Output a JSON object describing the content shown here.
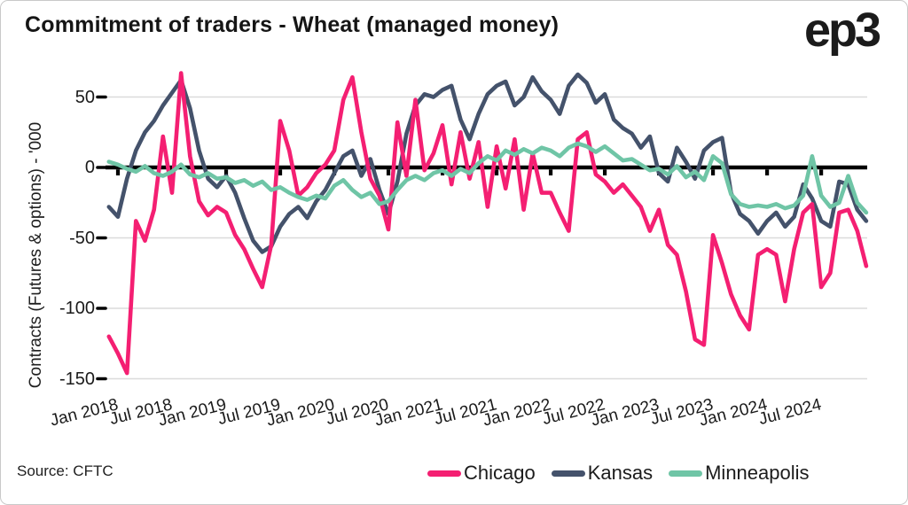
{
  "header": {
    "title": "Commitment of traders - Wheat (managed money)",
    "logo": "ep3"
  },
  "footer": {
    "source": "Source: CFTC"
  },
  "chart_data": {
    "type": "line",
    "title": "Commitment of traders - Wheat (managed money)",
    "xlabel": "",
    "ylabel": "Contracts (Futures & options) - '000",
    "ylim": [
      -160,
      72
    ],
    "y_ticks": [
      50,
      0,
      -50,
      -100,
      -150
    ],
    "x_tick_labels": [
      "Jan 2018",
      "Jul 2018",
      "Jan 2019",
      "Jul 2019",
      "Jan 2020",
      "Jul 2020",
      "Jan 2021",
      "Jul 2021",
      "Jan 2022",
      "Jul 2022",
      "Jan 2023",
      "Jul 2023",
      "Jan 2024",
      "Jul 2024"
    ],
    "grid": "horizontal-gray-lines, thick black zero axis with date ticks",
    "legend_position": "bottom",
    "unit": "thousand contracts",
    "months": [
      "2017-12",
      "2018-01",
      "2018-02",
      "2018-03",
      "2018-04",
      "2018-05",
      "2018-06",
      "2018-07",
      "2018-08",
      "2018-09",
      "2018-10",
      "2018-11",
      "2018-12",
      "2019-01",
      "2019-02",
      "2019-03",
      "2019-04",
      "2019-05",
      "2019-06",
      "2019-07",
      "2019-08",
      "2019-09",
      "2019-10",
      "2019-11",
      "2019-12",
      "2020-01",
      "2020-02",
      "2020-03",
      "2020-04",
      "2020-05",
      "2020-06",
      "2020-07",
      "2020-08",
      "2020-09",
      "2020-10",
      "2020-11",
      "2020-12",
      "2021-01",
      "2021-02",
      "2021-03",
      "2021-04",
      "2021-05",
      "2021-06",
      "2021-07",
      "2021-08",
      "2021-09",
      "2021-10",
      "2021-11",
      "2021-12",
      "2022-01",
      "2022-02",
      "2022-03",
      "2022-04",
      "2022-05",
      "2022-06",
      "2022-07",
      "2022-08",
      "2022-09",
      "2022-10",
      "2022-11",
      "2022-12",
      "2023-01",
      "2023-02",
      "2023-03",
      "2023-04",
      "2023-05",
      "2023-06",
      "2023-07",
      "2023-08",
      "2023-09",
      "2023-10",
      "2023-11",
      "2023-12",
      "2024-01",
      "2024-02",
      "2024-03",
      "2024-04",
      "2024-05",
      "2024-06",
      "2024-07",
      "2024-08",
      "2024-09",
      "2024-10",
      "2024-11",
      "2024-12"
    ],
    "draw_order": [
      "Kansas",
      "Chicago",
      "Minneapolis"
    ],
    "series": [
      {
        "name": "Chicago",
        "color": "#f41f72",
        "values": [
          -120,
          -132,
          -146,
          -38,
          -52,
          -30,
          22,
          -18,
          67,
          8,
          -24,
          -34,
          -28,
          -32,
          -48,
          -58,
          -72,
          -85,
          -55,
          33,
          12,
          -20,
          -14,
          -4,
          2,
          12,
          48,
          64,
          25,
          -8,
          -20,
          -44,
          32,
          -6,
          48,
          -2,
          10,
          30,
          -12,
          25,
          -8,
          18,
          -28,
          15,
          -15,
          20,
          -30,
          10,
          -18,
          -18,
          -32,
          -45,
          20,
          25,
          -5,
          -10,
          -18,
          -12,
          -20,
          -28,
          -45,
          -30,
          -55,
          -62,
          -88,
          -122,
          -126,
          -48,
          -68,
          -90,
          -105,
          -115,
          -62,
          -58,
          -62,
          -95,
          -58,
          -32,
          -26,
          -85,
          -75,
          -32,
          -30,
          -45,
          -70
        ]
      },
      {
        "name": "Kansas",
        "color": "#44526b",
        "values": [
          -28,
          -35,
          -8,
          12,
          25,
          33,
          44,
          53,
          62,
          42,
          12,
          -8,
          -14,
          -6,
          -18,
          -36,
          -52,
          -60,
          -56,
          -42,
          -33,
          -28,
          -36,
          -24,
          -16,
          -4,
          8,
          12,
          -6,
          6,
          -16,
          -33,
          -10,
          24,
          44,
          52,
          50,
          55,
          58,
          34,
          20,
          38,
          52,
          58,
          61,
          44,
          50,
          64,
          54,
          48,
          38,
          58,
          66,
          60,
          46,
          52,
          34,
          28,
          24,
          14,
          22,
          -4,
          -10,
          14,
          4,
          -8,
          12,
          18,
          21,
          -18,
          -33,
          -38,
          -47,
          -38,
          -32,
          -42,
          -35,
          -12,
          -22,
          -38,
          -42,
          -10,
          -12,
          -30,
          -38
        ]
      },
      {
        "name": "Minneapolis",
        "color": "#6fc5a6",
        "values": [
          4,
          2,
          -1,
          -3,
          1,
          -4,
          -6,
          -3,
          2,
          -5,
          -7,
          -4,
          -8,
          -7,
          -11,
          -9,
          -13,
          -10,
          -16,
          -14,
          -18,
          -21,
          -23,
          -20,
          -22,
          -13,
          -9,
          -16,
          -21,
          -18,
          -26,
          -24,
          -16,
          -9,
          -6,
          -9,
          -4,
          -2,
          -6,
          -1,
          -4,
          3,
          8,
          5,
          12,
          9,
          13,
          10,
          14,
          12,
          8,
          14,
          17,
          15,
          11,
          15,
          10,
          5,
          6,
          2,
          -2,
          -1,
          -5,
          1,
          -7,
          -3,
          -9,
          8,
          3,
          -19,
          -26,
          -28,
          -27,
          -28,
          -26,
          -29,
          -27,
          -20,
          8,
          -20,
          -28,
          -25,
          -6,
          -25,
          -32
        ]
      }
    ],
    "colors": {
      "grid_line": "#dbdbdb",
      "zero_axis": "#000000",
      "text": "#1a1a1a"
    }
  }
}
